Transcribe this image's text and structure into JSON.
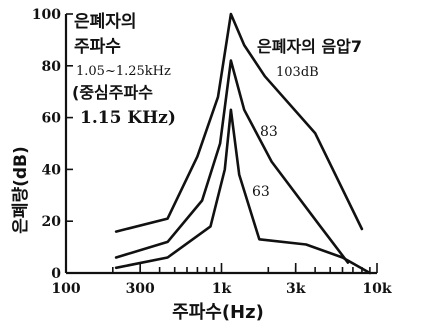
{
  "chart_data": {
    "type": "line",
    "xlabel": "주파수(Hz)",
    "ylabel": "은폐량(dB)",
    "x_scale": "log",
    "xlim": [
      100,
      10000
    ],
    "ylim": [
      0,
      100
    ],
    "x_tick_labels": [
      "100",
      "300",
      "1k",
      "3k",
      "10k"
    ],
    "x_tick_values": [
      100,
      300,
      1000,
      3000,
      10000
    ],
    "y_tick_labels": [
      "0",
      "20",
      "40",
      "60",
      "80",
      "100"
    ],
    "y_tick_values": [
      0,
      20,
      40,
      60,
      80,
      100
    ],
    "grid": false,
    "annotations": {
      "masker_title_line1": "은폐자의",
      "masker_title_line2": "주파수",
      "masker_range": "1.05~1.25kHz",
      "masker_center_label": "(중심주파수",
      "masker_center_value": "1.15 KHz)",
      "level_title": "은폐자의 음압7"
    },
    "series": [
      {
        "label": "103dB",
        "x": [
          210,
          450,
          700,
          950,
          1150,
          1400,
          1900,
          4000,
          8000
        ],
        "y": [
          16,
          21,
          45,
          68,
          100,
          88,
          76,
          54,
          17
        ]
      },
      {
        "label": "83",
        "x": [
          210,
          450,
          750,
          980,
          1150,
          1400,
          2100,
          4200,
          6500
        ],
        "y": [
          6,
          12,
          28,
          50,
          82,
          63,
          43,
          19,
          4
        ]
      },
      {
        "label": "63",
        "x": [
          210,
          450,
          850,
          1050,
          1150,
          1300,
          1750,
          3500,
          6000,
          9000
        ],
        "y": [
          2,
          6,
          18,
          40,
          63,
          38,
          13,
          11,
          6,
          0
        ]
      }
    ]
  }
}
